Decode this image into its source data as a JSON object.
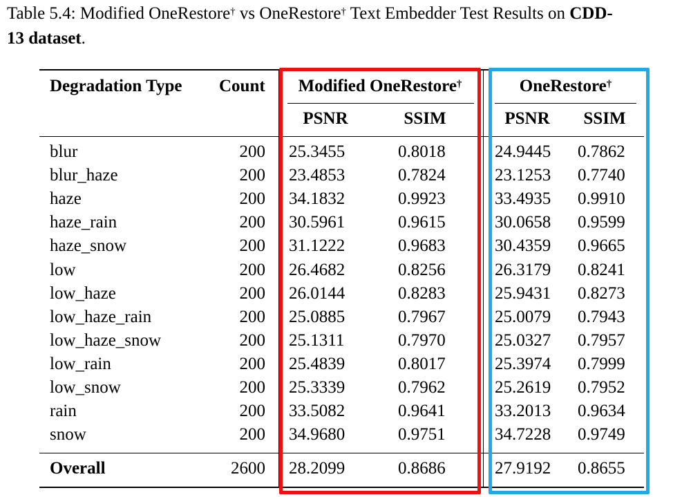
{
  "caption": {
    "prefix": "Table 5.4: Modified OneRestore",
    "dagger1": "†",
    "mid": " vs OneRestore",
    "dagger2": "†",
    "suffix": " Text Embedder Test Results on ",
    "bold_a": "CDD-",
    "bold_b": "13 dataset",
    "end": "."
  },
  "headers": {
    "degradation_type": "Degradation Type",
    "count": "Count",
    "modified": "Modified OneRestore",
    "original": "OneRestore",
    "dagger": "†",
    "psnr": "PSNR",
    "ssim": "SSIM"
  },
  "rows": [
    {
      "type": "blur",
      "count": "200",
      "mod_psnr": "25.3455",
      "mod_ssim": "0.8018",
      "orig_psnr": "24.9445",
      "orig_ssim": "0.7862"
    },
    {
      "type": "blur_haze",
      "count": "200",
      "mod_psnr": "23.4853",
      "mod_ssim": "0.7824",
      "orig_psnr": "23.1253",
      "orig_ssim": "0.7740"
    },
    {
      "type": "haze",
      "count": "200",
      "mod_psnr": "34.1832",
      "mod_ssim": "0.9923",
      "orig_psnr": "33.4935",
      "orig_ssim": "0.9910"
    },
    {
      "type": "haze_rain",
      "count": "200",
      "mod_psnr": "30.5961",
      "mod_ssim": "0.9615",
      "orig_psnr": "30.0658",
      "orig_ssim": "0.9599"
    },
    {
      "type": "haze_snow",
      "count": "200",
      "mod_psnr": "31.1222",
      "mod_ssim": "0.9683",
      "orig_psnr": "30.4359",
      "orig_ssim": "0.9665"
    },
    {
      "type": "low",
      "count": "200",
      "mod_psnr": "26.4682",
      "mod_ssim": "0.8256",
      "orig_psnr": "26.3179",
      "orig_ssim": "0.8241"
    },
    {
      "type": "low_haze",
      "count": "200",
      "mod_psnr": "26.0144",
      "mod_ssim": "0.8283",
      "orig_psnr": "25.9431",
      "orig_ssim": "0.8273"
    },
    {
      "type": "low_haze_rain",
      "count": "200",
      "mod_psnr": "25.0885",
      "mod_ssim": "0.7967",
      "orig_psnr": "25.0079",
      "orig_ssim": "0.7943"
    },
    {
      "type": "low_haze_snow",
      "count": "200",
      "mod_psnr": "25.1311",
      "mod_ssim": "0.7970",
      "orig_psnr": "25.0327",
      "orig_ssim": "0.7957"
    },
    {
      "type": "low_rain",
      "count": "200",
      "mod_psnr": "25.4839",
      "mod_ssim": "0.8017",
      "orig_psnr": "25.3974",
      "orig_ssim": "0.7999"
    },
    {
      "type": "low_snow",
      "count": "200",
      "mod_psnr": "25.3339",
      "mod_ssim": "0.7962",
      "orig_psnr": "25.2619",
      "orig_ssim": "0.7952"
    },
    {
      "type": "rain",
      "count": "200",
      "mod_psnr": "33.5082",
      "mod_ssim": "0.9641",
      "orig_psnr": "33.2013",
      "orig_ssim": "0.9634"
    },
    {
      "type": "snow",
      "count": "200",
      "mod_psnr": "34.9680",
      "mod_ssim": "0.9751",
      "orig_psnr": "34.7228",
      "orig_ssim": "0.9749"
    }
  ],
  "overall": {
    "type": "Overall",
    "count": "2600",
    "mod_psnr": "28.2099",
    "mod_ssim": "0.8686",
    "orig_psnr": "27.9192",
    "orig_ssim": "0.8655"
  },
  "highlight_colors": {
    "modified": "#ee1111",
    "original": "#1eaae6"
  }
}
